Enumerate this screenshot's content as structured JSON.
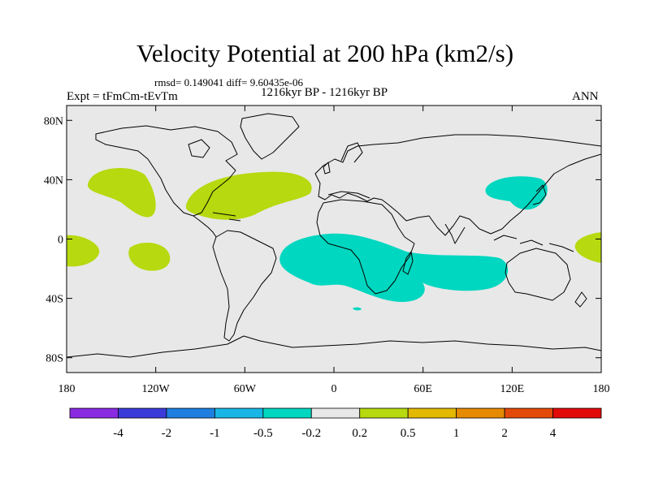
{
  "figure": {
    "title": "Velocity Potential at 200 hPa (km2/s)",
    "stats_line": "rmsd= 0.149041 diff= 9.60435e-06",
    "experiment": "Expt = tFmCm-tEvTm",
    "period": "1216kyr BP - 1216kyr BP",
    "season": "ANN"
  },
  "axes": {
    "lat_ticks": [
      {
        "label": "80N",
        "lat": 80
      },
      {
        "label": "40N",
        "lat": 40
      },
      {
        "label": "0",
        "lat": 0
      },
      {
        "label": "40S",
        "lat": -40
      },
      {
        "label": "80S",
        "lat": -80
      }
    ],
    "lon_ticks": [
      {
        "label": "180",
        "lon": -180
      },
      {
        "label": "120W",
        "lon": -120
      },
      {
        "label": "60W",
        "lon": -60
      },
      {
        "label": "0",
        "lon": 0
      },
      {
        "label": "60E",
        "lon": 60
      },
      {
        "label": "120E",
        "lon": 120
      },
      {
        "label": "180",
        "lon": 180
      }
    ]
  },
  "colorbar": {
    "colors": [
      "#8a2be2",
      "#3b3bd9",
      "#1e7fe0",
      "#18b6e6",
      "#00d7c0",
      "#e8e8e8",
      "#b6d90f",
      "#e3b800",
      "#e68a00",
      "#e34a0a",
      "#e30a0a"
    ],
    "labels": [
      "-4",
      "-2",
      "-1",
      "-0.5",
      "-0.2",
      "0.2",
      "0.5",
      "1",
      "2",
      "4"
    ]
  },
  "map_colors": {
    "background": "#e8e8e8",
    "positive": "#b6d90f",
    "negative": "#00d7c0"
  }
}
